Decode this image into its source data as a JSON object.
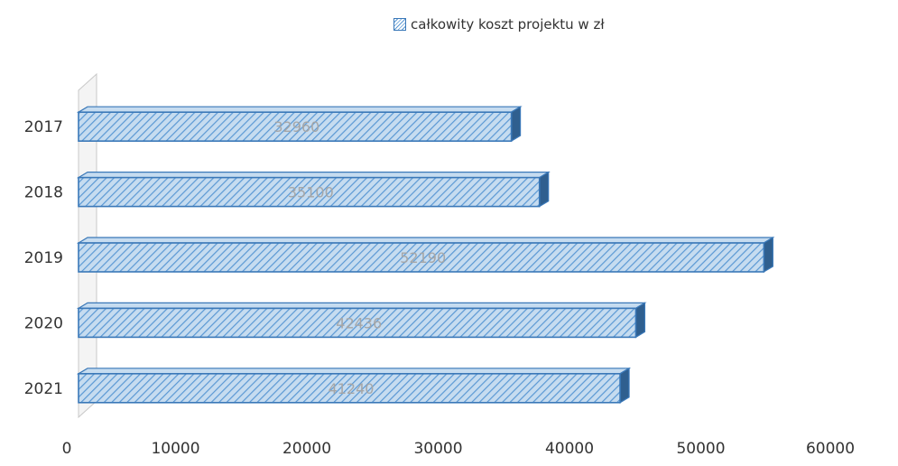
{
  "chart_data": {
    "type": "bar",
    "orientation": "horizontal",
    "categories": [
      "2017",
      "2018",
      "2019",
      "2020",
      "2021"
    ],
    "series": [
      {
        "name": "całkowity koszt projektu w zł",
        "values": [
          32960,
          35100,
          52190,
          42436,
          41240
        ]
      }
    ],
    "data_labels": [
      "32960",
      "35100",
      "52190",
      "42436",
      "41240"
    ],
    "x_ticks": [
      "0",
      "10000",
      "20000",
      "30000",
      "40000",
      "50000",
      "60000"
    ],
    "xlim": [
      0,
      60000
    ],
    "legend_position": "top",
    "grid": false,
    "colors": {
      "bar_fill": "#a9cbe9",
      "bar_stroke": "#3a78b8",
      "hatch": "#5a98d4"
    }
  }
}
